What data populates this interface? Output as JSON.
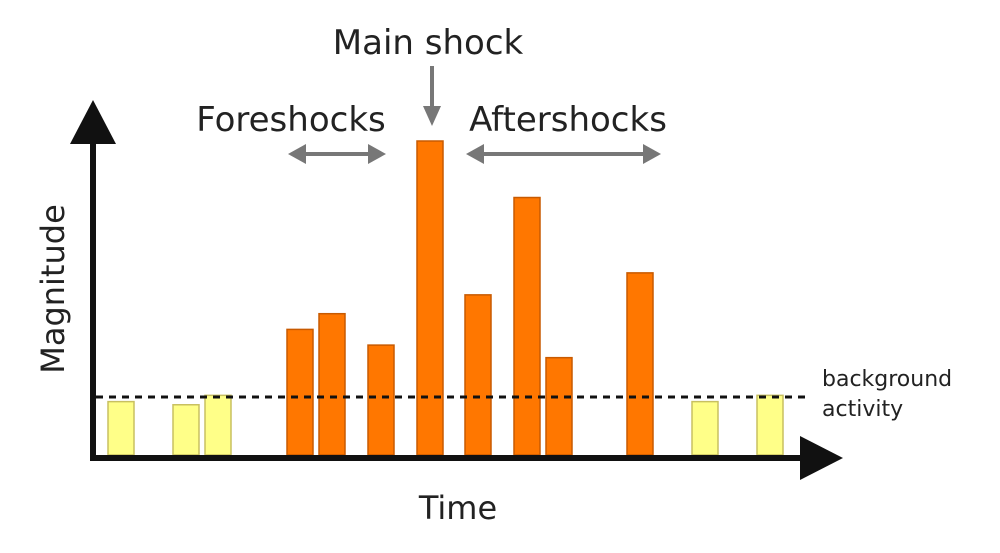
{
  "diagram": {
    "labels": {
      "main_shock": "Main shock",
      "foreshocks": "Foreshocks",
      "aftershocks": "Aftershocks",
      "x_axis": "Time",
      "y_axis": "Magnitude",
      "background_line1": "background",
      "background_line2": "activity"
    },
    "colors": {
      "axis": "#111111",
      "background_bar": "#ffff88",
      "event_bar": "#ff7700",
      "bar_outline": "#c85a00",
      "background_bar_outline": "#c8c060",
      "arrow": "#777777",
      "threshold_line": "#111111"
    },
    "bars": [
      {
        "type": "background",
        "level": 0.17
      },
      {
        "type": "background",
        "level": 0.16
      },
      {
        "type": "background",
        "level": 0.19
      },
      {
        "type": "event",
        "level": 0.4
      },
      {
        "type": "event",
        "level": 0.45
      },
      {
        "type": "event",
        "level": 0.35
      },
      {
        "type": "event",
        "level": 1.0
      },
      {
        "type": "event",
        "level": 0.51
      },
      {
        "type": "event",
        "level": 0.82
      },
      {
        "type": "event",
        "level": 0.31
      },
      {
        "type": "event",
        "level": 0.58
      },
      {
        "type": "background",
        "level": 0.17
      },
      {
        "type": "background",
        "level": 0.19
      }
    ],
    "background_threshold": 0.19
  }
}
